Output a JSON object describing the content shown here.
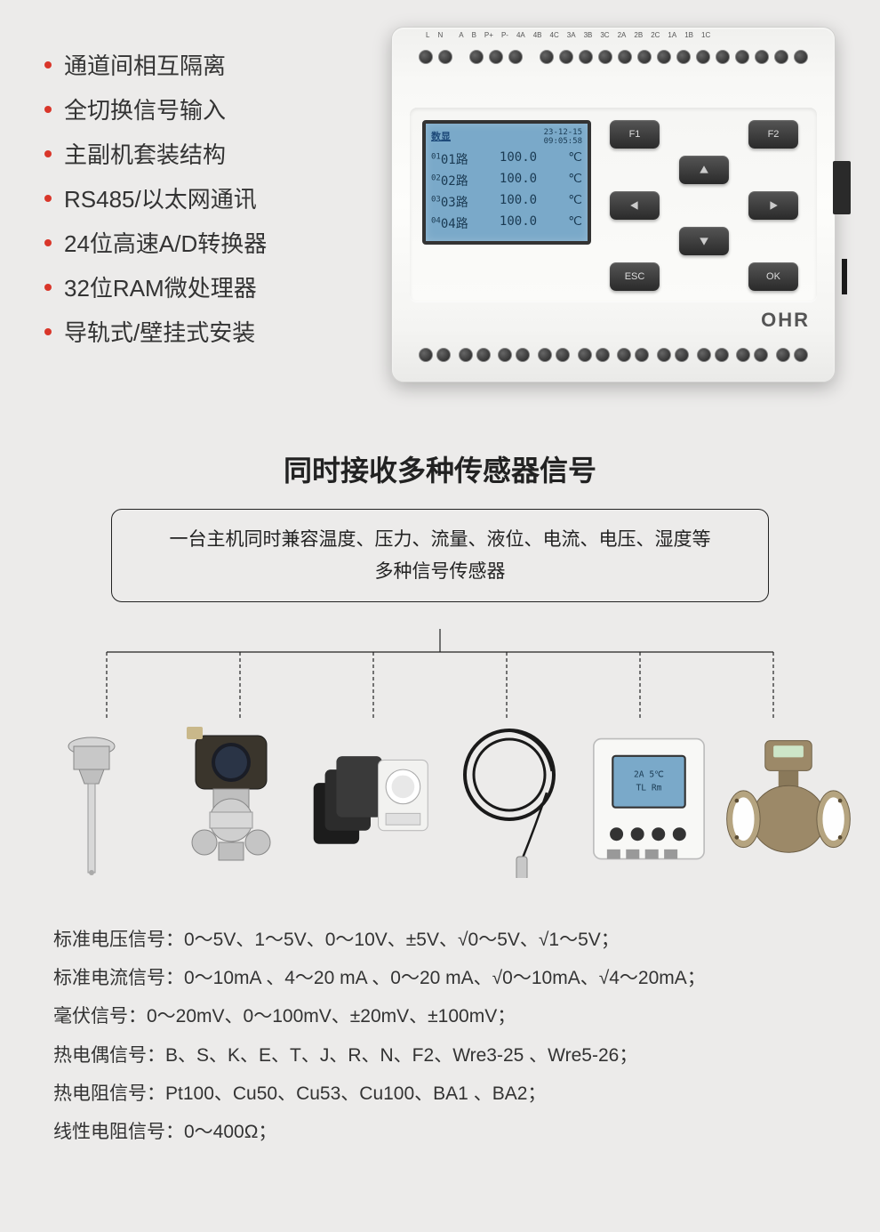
{
  "features": [
    "通道间相互隔离",
    "全切换信号输入",
    "主副机套装结构",
    "RS485/以太网通讯",
    "24位高速A/D转换器",
    "32位RAM微处理器",
    "导轨式/壁挂式安装"
  ],
  "feature_bullet_color": "#d9362a",
  "device": {
    "brand": "OHR",
    "lcd": {
      "title": "数显",
      "date": "23-12-15",
      "time": "09:05:58",
      "rows": [
        {
          "idx": "01",
          "ch": "01路",
          "val": "100.0",
          "unit": "℃"
        },
        {
          "idx": "02",
          "ch": "02路",
          "val": "100.0",
          "unit": "℃"
        },
        {
          "idx": "03",
          "ch": "03路",
          "val": "100.0",
          "unit": "℃"
        },
        {
          "idx": "04",
          "ch": "04路",
          "val": "100.0",
          "unit": "℃"
        }
      ],
      "bg_color": "#7aa9c9",
      "text_color": "#1a3a52"
    },
    "buttons": {
      "f1": "F1",
      "f2": "F2",
      "esc": "ESC",
      "ok": "OK"
    },
    "terminal_top_labels": [
      "L",
      "N",
      "",
      "A",
      "B",
      "P+",
      "P-",
      "4A",
      "4B",
      "4C",
      "3A",
      "3B",
      "3C",
      "2A",
      "2B",
      "2C",
      "1A",
      "1B",
      "1C"
    ]
  },
  "section_title": "同时接收多种传感器信号",
  "desc_box_line1": "一台主机同时兼容温度、压力、流量、液位、电流、电压、湿度等",
  "desc_box_line2": "多种信号传感器",
  "sensors": [
    {
      "name": "thermocouple-probe"
    },
    {
      "name": "pressure-transmitter"
    },
    {
      "name": "current-transformer"
    },
    {
      "name": "level-probe"
    },
    {
      "name": "panel-meter"
    },
    {
      "name": "flow-meter"
    }
  ],
  "specs": [
    "标准电压信号：0～5V、1～5V、0～10V、±5V、√0～5V、√1～5V；",
    "标准电流信号：0～10mA 、4～20 mA 、0～20 mA、√0～10mA、√4～20mA；",
    "毫伏信号：0～20mV、0～100mV、±20mV、±100mV；",
    "热电偶信号：B、S、K、E、T、J、R、N、F2、Wre3-25 、Wre5-26；",
    "热电阻信号：Pt100、Cu50、Cu53、Cu100、BA1 、BA2；",
    "线性电阻信号：0～400Ω；"
  ],
  "colors": {
    "page_bg": "#ecebea",
    "text": "#333333",
    "border": "#222222"
  }
}
